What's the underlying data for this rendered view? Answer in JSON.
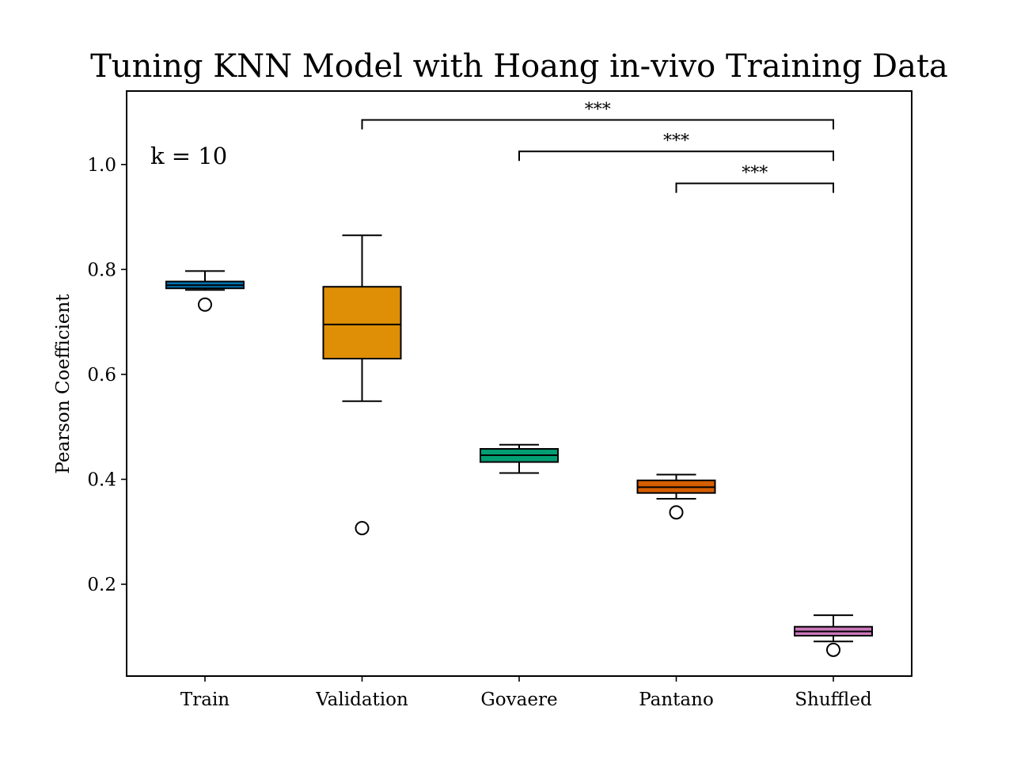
{
  "chart_data": {
    "type": "box",
    "title": "Tuning KNN Model with Hoang in-vivo Training Data",
    "xlabel": "",
    "ylabel": "Pearson Coefficient",
    "ylim": [
      0.025,
      1.14
    ],
    "yticks": [
      "0.2",
      "0.4",
      "0.6",
      "0.8",
      "1.0"
    ],
    "annotation": "k = 10",
    "grid": false,
    "categories": [
      "Train",
      "Validation",
      "Govaere",
      "Pantano",
      "Shuffled"
    ],
    "boxes": [
      {
        "name": "Train",
        "color": "#0072b2",
        "whisker_low": 0.761,
        "q1": 0.764,
        "median": 0.77,
        "q3": 0.777,
        "whisker_high": 0.797,
        "outliers": [
          0.733
        ]
      },
      {
        "name": "Validation",
        "color": "#de8f05",
        "whisker_low": 0.549,
        "q1": 0.63,
        "median": 0.695,
        "q3": 0.767,
        "whisker_high": 0.865,
        "outliers": [
          0.307
        ]
      },
      {
        "name": "Govaere",
        "color": "#029e73",
        "whisker_low": 0.412,
        "q1": 0.433,
        "median": 0.446,
        "q3": 0.458,
        "whisker_high": 0.466,
        "outliers": []
      },
      {
        "name": "Pantano",
        "color": "#d55e00",
        "whisker_low": 0.363,
        "q1": 0.374,
        "median": 0.385,
        "q3": 0.398,
        "whisker_high": 0.409,
        "outliers": [
          0.337
        ]
      },
      {
        "name": "Shuffled",
        "color": "#cc78bc",
        "whisker_low": 0.091,
        "q1": 0.102,
        "median": 0.11,
        "q3": 0.119,
        "whisker_high": 0.141,
        "outliers": [
          0.075
        ]
      }
    ],
    "significance": [
      {
        "from": "Validation",
        "to": "Shuffled",
        "label": "***",
        "y": 1.085
      },
      {
        "from": "Govaere",
        "to": "Shuffled",
        "label": "***",
        "y": 1.025
      },
      {
        "from": "Pantano",
        "to": "Shuffled",
        "label": "***",
        "y": 0.964
      }
    ]
  }
}
